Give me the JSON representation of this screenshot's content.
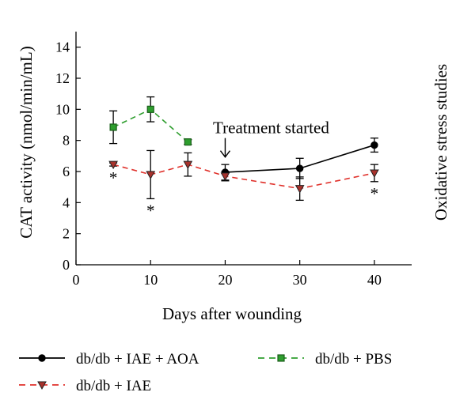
{
  "chart_data": {
    "type": "line",
    "title": "",
    "xlabel": "Days after wounding",
    "ylabel": "CAT activity (nmol/min/mL)",
    "right_label": "Oxidative stress studies",
    "xlim": [
      0,
      45
    ],
    "ylim": [
      0,
      15
    ],
    "xticks": [
      0,
      10,
      20,
      30,
      40
    ],
    "yticks": [
      0,
      2,
      4,
      6,
      8,
      10,
      12,
      14
    ],
    "grid": false,
    "legend_position": "bottom",
    "series": [
      {
        "name": "db/db + IAE + AOA",
        "color": "#000000",
        "dash": "solid",
        "marker": "circle",
        "x": [
          20,
          30,
          40
        ],
        "y": [
          5.95,
          6.2,
          7.7
        ],
        "err": [
          0.5,
          0.65,
          0.45
        ]
      },
      {
        "name": "db/db + PBS",
        "color": "#2e9e2e",
        "dash": "dashed",
        "marker": "square",
        "x": [
          5,
          10,
          15
        ],
        "y": [
          8.85,
          10.0,
          7.9
        ],
        "err": [
          1.05,
          0.8,
          0.15
        ]
      },
      {
        "name": "db/db + IAE",
        "color": "#e0312b",
        "dash": "dashed",
        "marker": "triangle-down",
        "x": [
          5,
          10,
          15,
          20,
          30,
          40
        ],
        "y": [
          6.45,
          5.8,
          6.45,
          5.7,
          4.9,
          5.9
        ],
        "err": [
          0.1,
          1.55,
          0.75,
          0.3,
          0.75,
          0.55
        ]
      }
    ],
    "annotations": [
      {
        "text": "Treatment started",
        "x": 20,
        "y": 8,
        "type": "arrow-label"
      },
      {
        "text": "*",
        "x": 5,
        "y": 6.45,
        "type": "significance"
      },
      {
        "text": "*",
        "x": 10,
        "y": 5.8,
        "type": "significance"
      },
      {
        "text": "*",
        "x": 40,
        "y": 5.9,
        "type": "significance"
      }
    ]
  }
}
